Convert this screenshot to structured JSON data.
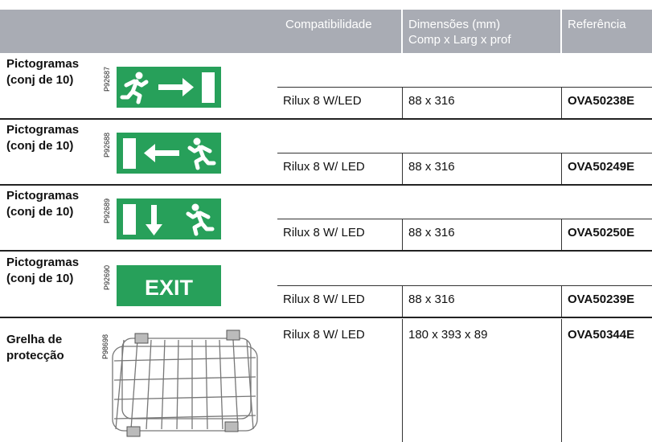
{
  "header": {
    "compatibility": "Compatibilidade",
    "dimensions": [
      "Dimensões (mm)",
      "Comp x Larg x prof"
    ],
    "reference": "Referência"
  },
  "rows": [
    {
      "label": [
        "Pictogramas",
        "(conj de 10)"
      ],
      "code": "P92687",
      "compatibility": "Rilux 8 W/LED",
      "dimensions": "88 x 316",
      "reference": "OVA50238E"
    },
    {
      "label": [
        "Pictogramas",
        "(conj de 10)"
      ],
      "code": "P92688",
      "compatibility": "Rilux 8 W/ LED",
      "dimensions": "88 x 316",
      "reference": "OVA50249E"
    },
    {
      "label": [
        "Pictogramas",
        "(conj de 10)"
      ],
      "code": "P92689",
      "compatibility": "Rilux 8 W/ LED",
      "dimensions": "88 x 316",
      "reference": "OVA50250E"
    },
    {
      "label": [
        "Pictogramas",
        "(conj de 10)"
      ],
      "code": "P92690",
      "sign_text": "EXIT",
      "compatibility": "Rilux 8 W/ LED",
      "dimensions": "88 x 316",
      "reference": "OVA50239E"
    },
    {
      "label": [
        "Grelha de",
        "protecção"
      ],
      "code": "P98698",
      "compatibility": "Rilux 8 W/ LED",
      "dimensions": "180 x 393 x 89",
      "reference": "OVA50344E"
    }
  ]
}
